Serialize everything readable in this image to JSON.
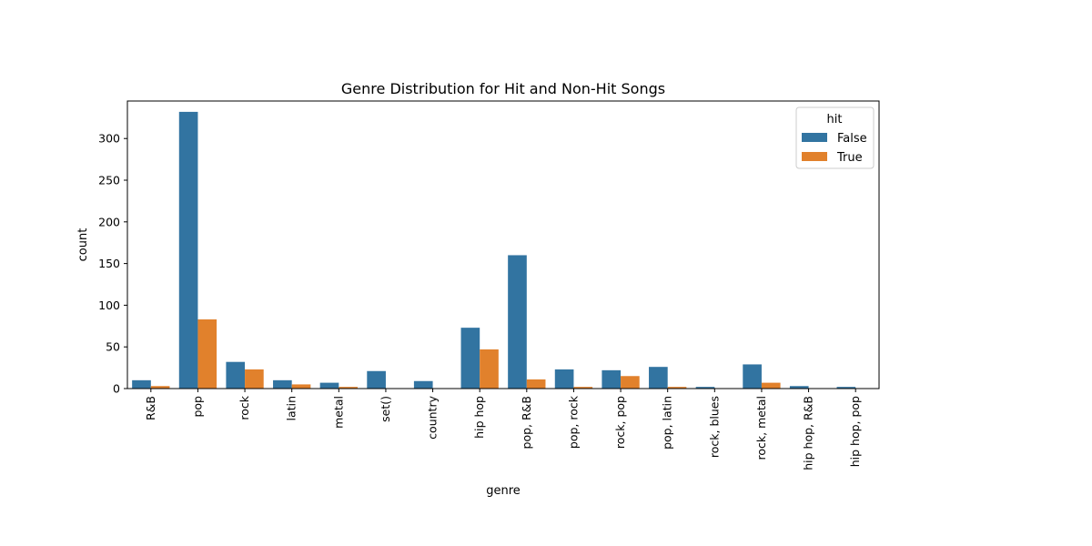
{
  "chart_data": {
    "type": "bar",
    "title": "Genre Distribution for Hit and Non-Hit Songs",
    "xlabel": "genre",
    "ylabel": "count",
    "ylim": [
      0,
      345
    ],
    "yticks": [
      0,
      50,
      100,
      150,
      200,
      250,
      300
    ],
    "grid": false,
    "legend": {
      "title": "hit",
      "placement": "top-right"
    },
    "categories": [
      "R&B",
      "pop",
      "rock",
      "latin",
      "metal",
      "set()",
      "country",
      "hip hop",
      "pop, R&B",
      "pop, rock",
      "rock, pop",
      "pop, latin",
      "rock, blues",
      "rock, metal",
      "hip hop, R&B",
      "hip hop, pop"
    ],
    "series": [
      {
        "name": "False",
        "color": "#3274a1",
        "values": [
          10,
          332,
          32,
          10,
          7,
          21,
          9,
          73,
          160,
          23,
          22,
          26,
          2,
          29,
          3,
          2
        ]
      },
      {
        "name": "True",
        "color": "#e1812c",
        "values": [
          3,
          83,
          23,
          5,
          2,
          0,
          0,
          47,
          11,
          2,
          15,
          2,
          0,
          7,
          0,
          0
        ]
      }
    ]
  }
}
